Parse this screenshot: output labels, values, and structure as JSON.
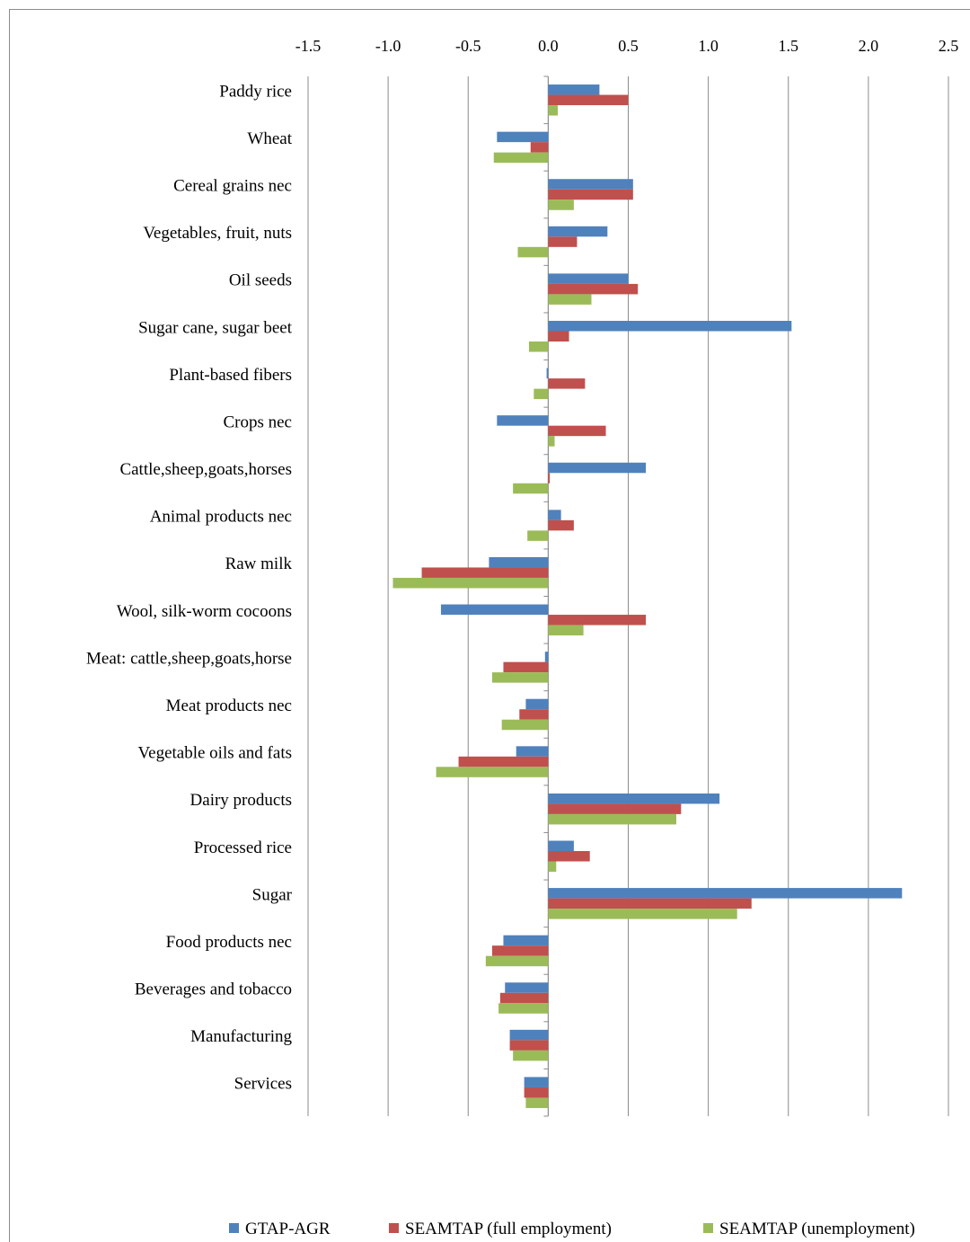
{
  "chart_data": {
    "type": "bar",
    "orientation": "horizontal",
    "title": "",
    "xlabel": "",
    "ylabel": "",
    "xlim": [
      -1.5,
      2.5
    ],
    "x_ticks": [
      "-1.5",
      "-1.0",
      "-0.5",
      "0.0",
      "0.5",
      "1.0",
      "1.5",
      "2.0",
      "2.5"
    ],
    "grid": "vertical",
    "legend_position": "bottom",
    "categories": [
      "Paddy rice",
      "Wheat",
      "Cereal grains nec",
      "Vegetables, fruit, nuts",
      "Oil seeds",
      "Sugar cane, sugar beet",
      "Plant-based fibers",
      "Crops nec",
      "Cattle,sheep,goats,horses",
      "Animal products nec",
      "Raw milk",
      "Wool, silk-worm cocoons",
      "Meat: cattle,sheep,goats,horse",
      "Meat products nec",
      "Vegetable oils and fats",
      "Dairy products",
      "Processed rice",
      "Sugar",
      "Food products nec",
      "Beverages and tobacco",
      "Manufacturing",
      "Services"
    ],
    "series": [
      {
        "name": "GTAP-AGR",
        "color": "#4f81bd",
        "values": [
          0.32,
          -0.32,
          0.53,
          0.37,
          0.5,
          1.52,
          -0.01,
          -0.32,
          0.61,
          0.08,
          -0.37,
          -0.67,
          -0.02,
          -0.14,
          -0.2,
          1.07,
          0.16,
          2.21,
          -0.28,
          -0.27,
          -0.24,
          -0.15
        ]
      },
      {
        "name": "SEAMTAP (full employment)",
        "color": "#c0504d",
        "values": [
          0.5,
          -0.11,
          0.53,
          0.18,
          0.56,
          0.13,
          0.23,
          0.36,
          0.01,
          0.16,
          -0.79,
          0.61,
          -0.28,
          -0.18,
          -0.56,
          0.83,
          0.26,
          1.27,
          -0.35,
          -0.3,
          -0.24,
          -0.15
        ]
      },
      {
        "name": "SEAMTAP (unemployment)",
        "color": "#9bbb59",
        "values": [
          0.06,
          -0.34,
          0.16,
          -0.19,
          0.27,
          -0.12,
          -0.09,
          0.04,
          -0.22,
          -0.13,
          -0.97,
          0.22,
          -0.35,
          -0.29,
          -0.7,
          0.8,
          0.05,
          1.18,
          -0.39,
          -0.31,
          -0.22,
          -0.14
        ]
      }
    ]
  }
}
